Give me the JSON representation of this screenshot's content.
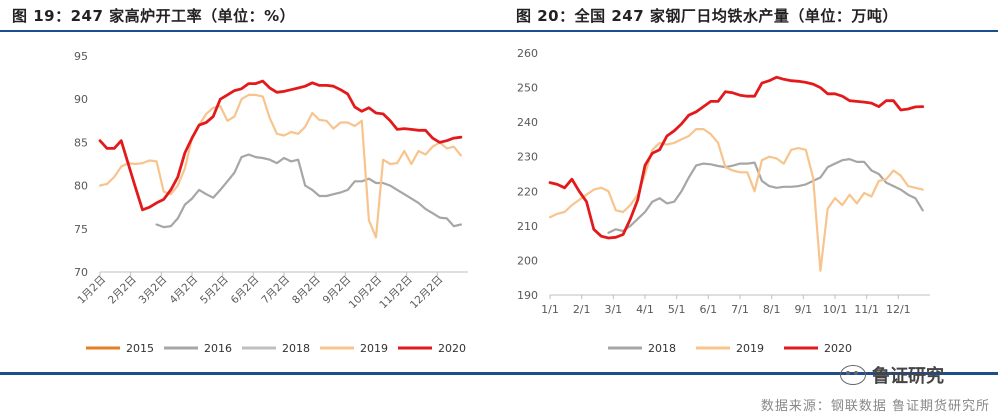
{
  "left_title": "图 19：247 家高炉开工率（单位：%）",
  "right_title": "图 20：全国 247 家钢厂日均铁水产量（单位：万吨）",
  "source": "数据来源：钢联数据  鲁证期货研究所",
  "watermark": "鲁证研究",
  "watermark_icon": "wechat-icon",
  "chart_data": [
    {
      "type": "line",
      "title": "",
      "ylim": [
        70,
        95
      ],
      "yticks": [
        70,
        75,
        80,
        85,
        90,
        95
      ],
      "xlim": [
        0,
        52
      ],
      "x_tick_labels": [
        "1月2日",
        "2月2日",
        "3月2日",
        "4月2日",
        "5月2日",
        "6月2日",
        "7月2日",
        "8月2日",
        "9月2日",
        "10月2日",
        "11月2日",
        "12月2日"
      ],
      "legend_position": "bottom",
      "grid": false,
      "series": [
        {
          "name": "2015",
          "color": "#e67e22",
          "values": []
        },
        {
          "name": "2016",
          "color": "#a6a6a6",
          "x": [
            8,
            9,
            10,
            11,
            12,
            13,
            14,
            15,
            16,
            17,
            18,
            19,
            20,
            21,
            22,
            23,
            24,
            25,
            26,
            27,
            28,
            29,
            30,
            31,
            32,
            33,
            34,
            35,
            36,
            37,
            38,
            39,
            40,
            41,
            42,
            43,
            44,
            45,
            46,
            47,
            48,
            49,
            50,
            51
          ],
          "values": [
            75.5,
            75.2,
            75.3,
            76.2,
            77.8,
            78.5,
            79.5,
            79,
            78.6,
            79.5,
            80.5,
            81.5,
            83.3,
            83.6,
            83.3,
            83.2,
            83,
            82.6,
            83.2,
            82.8,
            83,
            80,
            79.5,
            78.8,
            78.8,
            79,
            79.2,
            79.5,
            80.5,
            80.5,
            80.8,
            80.3,
            80.3,
            80,
            79.5,
            79,
            78.5,
            78,
            77.3,
            76.8,
            76.3,
            76.2,
            75.3,
            75.5
          ]
        },
        {
          "name": "2018",
          "color": "#bfbfbf",
          "values": []
        },
        {
          "name": "2019",
          "color": "#f8c48e",
          "x": [
            0,
            1,
            2,
            3,
            4,
            5,
            6,
            7,
            8,
            9,
            10,
            11,
            12,
            13,
            14,
            15,
            16,
            17,
            18,
            19,
            20,
            21,
            22,
            23,
            24,
            25,
            26,
            27,
            28,
            29,
            30,
            31,
            32,
            33,
            34,
            35,
            36,
            37,
            38,
            39,
            40,
            41,
            42,
            43,
            44,
            45,
            46,
            47,
            48,
            49,
            50,
            51
          ],
          "values": [
            80,
            80.2,
            81,
            82.2,
            82.6,
            82.5,
            82.6,
            82.9,
            82.8,
            79.3,
            79,
            80,
            82,
            85.5,
            87,
            88.3,
            89,
            89.2,
            87.5,
            88,
            90,
            90.5,
            90.5,
            90.3,
            87.8,
            86,
            85.8,
            86.2,
            86,
            86.8,
            88.4,
            87.6,
            87.5,
            86.6,
            87.3,
            87.3,
            86.9,
            87.5,
            76,
            74,
            83,
            82.5,
            82.6,
            84,
            82.5,
            84,
            83.6,
            84.5,
            85,
            84.3,
            84.5,
            83.5
          ]
        },
        {
          "name": "2020",
          "color": "#e31a1c",
          "x": [
            0,
            1,
            2,
            3,
            4,
            5,
            6,
            7,
            8,
            9,
            10,
            11,
            12,
            13,
            14,
            15,
            16,
            17,
            18,
            19,
            20,
            21,
            22,
            23,
            24,
            25,
            26,
            27,
            28,
            29,
            30,
            31,
            32,
            33,
            34,
            35,
            36,
            37,
            38,
            39,
            40,
            41,
            42,
            43,
            44,
            45,
            46,
            47,
            48,
            49,
            50,
            51
          ],
          "values": [
            85.2,
            84.3,
            84.3,
            85.2,
            82.5,
            79.8,
            77.2,
            77.5,
            78,
            78.4,
            79.5,
            81,
            83.8,
            85.5,
            87,
            87.3,
            88,
            90,
            90.5,
            91,
            91.2,
            91.8,
            91.8,
            92.1,
            91.3,
            90.8,
            90.9,
            91.1,
            91.3,
            91.5,
            91.9,
            91.6,
            91.6,
            91.5,
            91.1,
            90.6,
            89.1,
            88.6,
            89,
            88.4,
            88.3,
            87.5,
            86.5,
            86.6,
            86.5,
            86.4,
            86.4,
            85.5,
            85,
            85.2,
            85.5,
            85.6
          ]
        }
      ]
    },
    {
      "type": "line",
      "title": "",
      "ylim": [
        190,
        260
      ],
      "yticks": [
        190,
        200,
        210,
        220,
        230,
        240,
        250,
        260
      ],
      "xlim": [
        0,
        52
      ],
      "x_tick_labels": [
        "1/1",
        "2/1",
        "3/1",
        "4/1",
        "5/1",
        "6/1",
        "7/1",
        "8/1",
        "9/1",
        "10/1",
        "11/1",
        "12/1"
      ],
      "legend_position": "bottom",
      "grid": false,
      "series": [
        {
          "name": "2018",
          "color": "#a6a6a6",
          "x": [
            8,
            9,
            10,
            11,
            12,
            13,
            14,
            15,
            16,
            17,
            18,
            19,
            20,
            21,
            22,
            23,
            24,
            25,
            26,
            27,
            28,
            29,
            30,
            31,
            32,
            33,
            34,
            35,
            36,
            37,
            38,
            39,
            40,
            41,
            42,
            43,
            44,
            45,
            46,
            47,
            48,
            49,
            50,
            51
          ],
          "values": [
            208,
            209,
            208.5,
            210,
            212,
            214,
            217,
            218,
            216.5,
            217,
            220,
            224,
            227.5,
            228,
            227.8,
            227.3,
            227,
            227.4,
            228,
            228,
            228.3,
            223,
            221.5,
            221,
            221.3,
            221.3,
            221.5,
            222,
            223,
            224,
            227,
            228,
            229,
            229.3,
            228.5,
            228.5,
            226,
            225,
            222.5,
            221.5,
            220.5,
            219,
            218,
            214.5
          ]
        },
        {
          "name": "2019",
          "color": "#f8c48e",
          "x": [
            0,
            1,
            2,
            3,
            4,
            5,
            6,
            7,
            8,
            9,
            10,
            11,
            12,
            13,
            14,
            15,
            16,
            17,
            18,
            19,
            20,
            21,
            22,
            23,
            24,
            25,
            26,
            27,
            28,
            29,
            30,
            31,
            32,
            33,
            34,
            35,
            36,
            37,
            38,
            39,
            40,
            41,
            42,
            43,
            44,
            45,
            46,
            47,
            48,
            49,
            50,
            51
          ],
          "values": [
            212.5,
            213.5,
            214,
            216,
            217.5,
            219,
            220.5,
            221,
            220,
            214.5,
            214,
            216,
            219,
            225,
            232,
            234,
            233.5,
            234,
            235,
            236,
            238,
            238,
            236.5,
            234,
            227,
            226,
            225.5,
            225.5,
            220,
            229,
            230,
            229.5,
            228,
            232,
            232.5,
            232,
            224,
            197,
            215,
            218,
            216,
            219,
            216.5,
            219.5,
            218.5,
            223,
            223.5,
            226,
            224.5,
            221.5,
            221,
            220.5
          ]
        },
        {
          "name": "2020",
          "color": "#e31a1c",
          "x": [
            0,
            1,
            2,
            3,
            4,
            5,
            6,
            7,
            8,
            9,
            10,
            11,
            12,
            13,
            14,
            15,
            16,
            17,
            18,
            19,
            20,
            21,
            22,
            23,
            24,
            25,
            26,
            27,
            28,
            29,
            30,
            31,
            32,
            33,
            34,
            35,
            36,
            37,
            38,
            39,
            40,
            41,
            42,
            43,
            44,
            45,
            46,
            47,
            48,
            49,
            50,
            51
          ],
          "values": [
            222.5,
            222,
            221,
            223.5,
            220,
            217,
            209,
            207,
            206.5,
            206.7,
            207.5,
            212,
            217.5,
            227.5,
            231,
            232,
            236,
            237.5,
            239.5,
            242,
            243,
            244.5,
            246,
            246,
            248.8,
            248.5,
            247.8,
            247.5,
            247.5,
            251.3,
            252,
            253,
            252.4,
            252,
            251.8,
            251.5,
            251,
            250,
            248.2,
            248.2,
            247.5,
            246.2,
            246,
            245.8,
            245.5,
            244.5,
            246.2,
            246.2,
            243.5,
            243.8,
            244.4,
            244.5
          ]
        }
      ]
    }
  ]
}
